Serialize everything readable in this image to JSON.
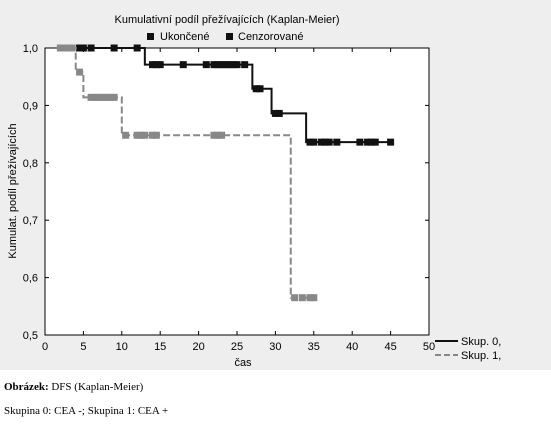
{
  "chart_data": {
    "type": "line",
    "title": "Kumulativní podíl přežívajících (Kaplan-Meier)",
    "legend_markers": [
      {
        "label": "Ukončené",
        "color": "#111111"
      },
      {
        "label": "Cenzorované",
        "color": "#111111"
      }
    ],
    "xlabel": "čas",
    "ylabel": "Kumulat. podíl přežívajících",
    "xlim": [
      0,
      50
    ],
    "ylim": [
      0.5,
      1.0
    ],
    "xticks": [
      0,
      5,
      10,
      15,
      20,
      25,
      30,
      35,
      40,
      45,
      50
    ],
    "xtick_labels": [
      "0",
      "5",
      "10",
      "15",
      "20",
      "25",
      "30",
      "35",
      "40",
      "45",
      "50"
    ],
    "yticks": [
      0.5,
      0.6,
      0.7,
      0.8,
      0.9,
      1.0
    ],
    "ytick_labels": [
      "0,5",
      "0,6",
      "0,7",
      "0,8",
      "0,9",
      "1,0"
    ],
    "series": [
      {
        "name": "Skup. 0,",
        "color": "#111111",
        "dashed": false,
        "steps": [
          [
            2,
            1.0
          ],
          [
            13,
            0.971
          ],
          [
            27,
            0.929
          ],
          [
            29.5,
            0.886
          ],
          [
            34,
            0.836
          ],
          [
            45,
            0.836
          ]
        ],
        "censored": [
          [
            3.5,
            1.0
          ],
          [
            4.5,
            1.0
          ],
          [
            5,
            1.0
          ],
          [
            6,
            1.0
          ],
          [
            9,
            1.0
          ],
          [
            12,
            1.0
          ],
          [
            14,
            0.971
          ],
          [
            14.5,
            0.971
          ],
          [
            15,
            0.971
          ],
          [
            18,
            0.971
          ],
          [
            21,
            0.971
          ],
          [
            22,
            0.971
          ],
          [
            22.5,
            0.971
          ],
          [
            23,
            0.971
          ],
          [
            23.5,
            0.971
          ],
          [
            24,
            0.971
          ],
          [
            24.5,
            0.971
          ],
          [
            25,
            0.971
          ],
          [
            26,
            0.971
          ],
          [
            27.5,
            0.929
          ],
          [
            28,
            0.929
          ],
          [
            30,
            0.886
          ],
          [
            30.5,
            0.886
          ],
          [
            34.5,
            0.836
          ],
          [
            35,
            0.836
          ],
          [
            36,
            0.836
          ],
          [
            36.5,
            0.836
          ],
          [
            37,
            0.836
          ],
          [
            38,
            0.836
          ],
          [
            41,
            0.836
          ],
          [
            42,
            0.836
          ],
          [
            42.5,
            0.836
          ],
          [
            43,
            0.836
          ],
          [
            45,
            0.836
          ]
        ]
      },
      {
        "name": "Skup. 1,",
        "color": "#888888",
        "dashed": true,
        "steps": [
          [
            2,
            1.0
          ],
          [
            4,
            0.958
          ],
          [
            5,
            0.914
          ],
          [
            10,
            0.848
          ],
          [
            32,
            0.565
          ],
          [
            35,
            0.565
          ]
        ],
        "censored": [
          [
            2,
            1.0
          ],
          [
            2.5,
            1.0
          ],
          [
            3,
            1.0
          ],
          [
            3.5,
            1.0
          ],
          [
            4.5,
            0.958
          ],
          [
            6,
            0.914
          ],
          [
            6.5,
            0.914
          ],
          [
            7,
            0.914
          ],
          [
            7.5,
            0.914
          ],
          [
            8,
            0.914
          ],
          [
            8.5,
            0.914
          ],
          [
            9,
            0.914
          ],
          [
            10.5,
            0.848
          ],
          [
            12,
            0.848
          ],
          [
            12.5,
            0.848
          ],
          [
            13,
            0.848
          ],
          [
            14,
            0.848
          ],
          [
            14.5,
            0.848
          ],
          [
            22,
            0.848
          ],
          [
            22.5,
            0.848
          ],
          [
            23,
            0.848
          ],
          [
            32.5,
            0.565
          ],
          [
            33.5,
            0.565
          ],
          [
            34.5,
            0.565
          ],
          [
            35,
            0.565
          ]
        ]
      }
    ],
    "grid": false,
    "legend_position": "bottom-right"
  },
  "caption": {
    "label": "Obrázek:",
    "text": "DFS (Kaplan-Meier)",
    "groups": "Skupina 0: CEA -; Skupina 1: CEA +"
  }
}
